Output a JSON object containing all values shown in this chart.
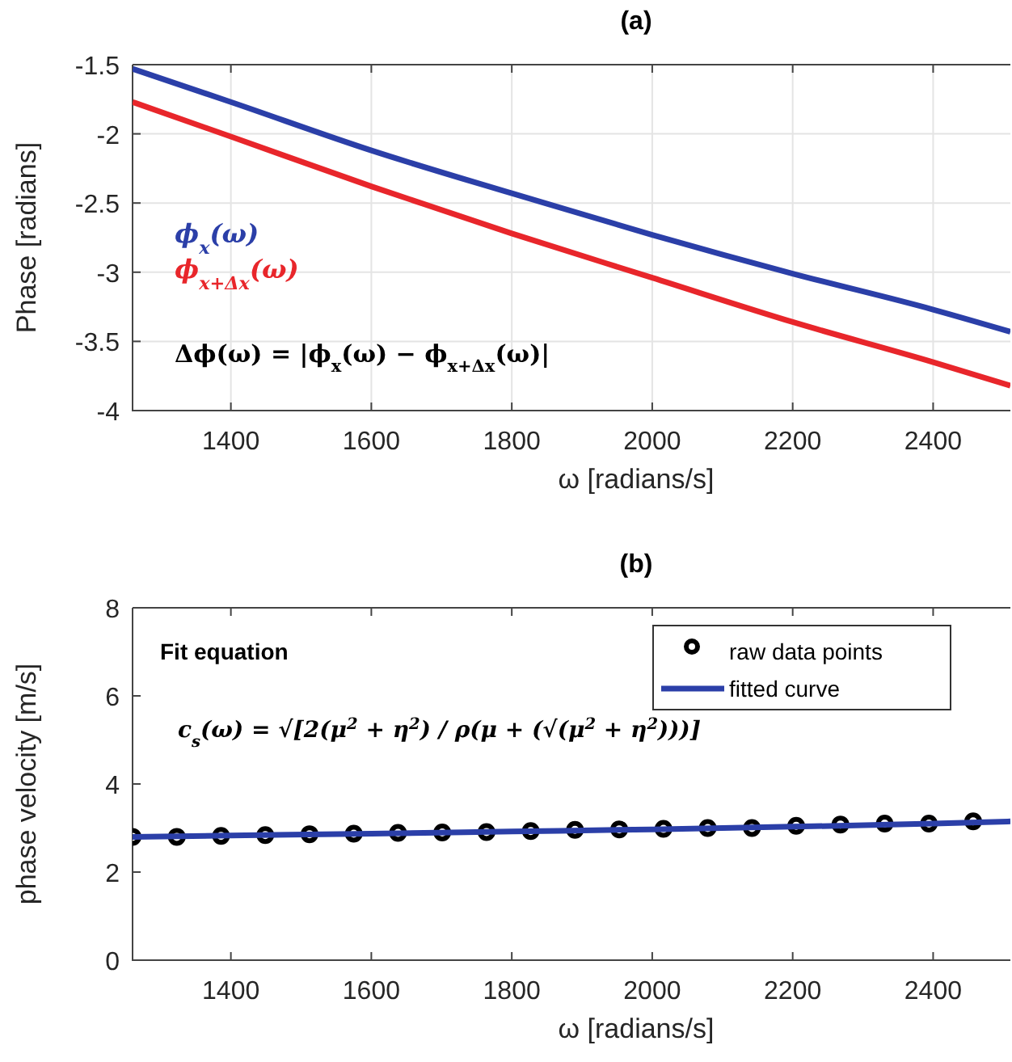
{
  "chart_data": [
    {
      "type": "line",
      "title": "(a)",
      "xlabel": "ω [radians/s]",
      "ylabel": "Phase [radians]",
      "xlim": [
        1260,
        2510
      ],
      "xticks": [
        1400,
        1600,
        1800,
        2000,
        2200,
        2400
      ],
      "ylim": [
        -4,
        -1.5
      ],
      "yticks": [
        -4,
        -3.5,
        -3,
        -2.5,
        -2,
        -1.5
      ],
      "grid": true,
      "legend": "left",
      "marker": "none",
      "series": [
        {
          "name": "ϕ$_{x}$(ω)",
          "color": "#2b3fa8",
          "x": [
            1260,
            1400,
            1600,
            1800,
            2000,
            2200,
            2400,
            2510
          ],
          "values": [
            -1.53,
            -1.77,
            -2.12,
            -2.43,
            -2.73,
            -3.01,
            -3.27,
            -3.43
          ]
        },
        {
          "name": "ϕ$_{x+Δx}$(ω)",
          "color": "#e8262b",
          "x": [
            1260,
            1400,
            1600,
            1800,
            2000,
            2200,
            2400,
            2510
          ],
          "values": [
            -1.77,
            -2.02,
            -2.38,
            -2.72,
            -3.04,
            -3.36,
            -3.65,
            -3.82
          ]
        }
      ],
      "annotations": [
        "Δϕ(ω) = |ϕ$_{x}$(ω) − ϕ$_{x+Δx}$(ω)|"
      ]
    },
    {
      "type": "line",
      "title": "(b)",
      "xlabel": "ω [radians/s]",
      "ylabel": "phase velocity [m/s]",
      "xlim": [
        1260,
        2510
      ],
      "xticks": [
        1400,
        1600,
        1800,
        2000,
        2200,
        2400
      ],
      "ylim": [
        0,
        8
      ],
      "yticks": [
        0,
        2,
        4,
        6,
        8
      ],
      "grid": false,
      "legend": "top right",
      "series": [
        {
          "name": "raw data points",
          "type": "scatter",
          "marker": "circle",
          "color": "#000000",
          "x": [
            1260,
            1323,
            1386,
            1449,
            1512,
            1575,
            1638,
            1701,
            1764,
            1827,
            1890,
            1953,
            2016,
            2079,
            2142,
            2205,
            2268,
            2331,
            2394,
            2457
          ],
          "values": [
            2.8,
            2.8,
            2.82,
            2.84,
            2.86,
            2.87,
            2.89,
            2.9,
            2.91,
            2.93,
            2.96,
            2.97,
            2.98,
            3.0,
            3.0,
            3.05,
            3.08,
            3.1,
            3.1,
            3.15
          ]
        },
        {
          "name": "fitted curve",
          "marker": "none",
          "color": "#2b3fa8",
          "x": [
            1260,
            1400,
            1600,
            1800,
            2000,
            2200,
            2400,
            2510
          ],
          "values": [
            2.8,
            2.83,
            2.87,
            2.92,
            2.97,
            3.03,
            3.1,
            3.15
          ]
        }
      ],
      "annotations": [
        "Fit equation",
        "c$_{s}$(ω) = √[2(μ$^{2}$ + η$^{2}$) / ρ(μ + (√(μ$^{2}$ + η$^{2}$)))]"
      ]
    }
  ]
}
